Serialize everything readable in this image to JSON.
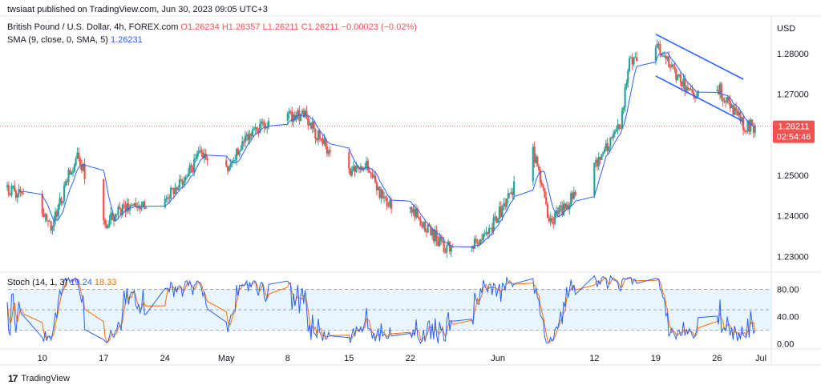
{
  "published": "twsiaat published on TradingView.com, Jun 30, 2023 09:05 UTC+3",
  "legend": {
    "symbol": "British Pound / U.S. Dollar, 4h, FOREX.com",
    "o_label": "O",
    "o": "1.26234",
    "h_label": "H",
    "h": "1.26357",
    "l_label": "L",
    "l": "1.26211",
    "c_label": "C",
    "c": "1.26211",
    "change": "−0.00023 (−0.02%)",
    "sma_label": "SMA (9, close, 0, SMA, 5)",
    "sma_value": "1.26231",
    "stoch_label": "Stoch (14, 1, 3)",
    "stoch_k": "19.24",
    "stoch_d": "18.33"
  },
  "currency": "USD",
  "price_tag": {
    "price": "1.26211",
    "countdown": "02:54:46"
  },
  "footer": {
    "brand": "TradingView",
    "mark": "17"
  },
  "colors": {
    "up": "#26a69a",
    "down": "#ef5350",
    "sma": "#2962ff",
    "stoch_k": "#2962ff",
    "stoch_d": "#ff6d00",
    "band_fill": "#e3f2fd",
    "channel": "#2962ff"
  },
  "chart_data": {
    "type": "candlestick",
    "timeframe": "4h",
    "price_axis": {
      "ylim": [
        1.2265,
        1.2893
      ],
      "ticks": [
        "1.23000",
        "1.24000",
        "1.25000",
        "1.26000",
        "1.27000",
        "1.28000"
      ],
      "tick_values": [
        1.23,
        1.24,
        1.25,
        1.26,
        1.27,
        1.28
      ]
    },
    "time_axis": {
      "labels": [
        "10",
        "17",
        "24",
        "May",
        "8",
        "15",
        "22",
        "Jun",
        "12",
        "19",
        "26",
        "Jul"
      ],
      "dates": [
        "2023-04-10",
        "2023-04-17",
        "2023-04-24",
        "2023-05-01",
        "2023-05-08",
        "2023-05-15",
        "2023-05-22",
        "2023-06-01",
        "2023-06-12",
        "2023-06-19",
        "2023-06-26",
        "2023-07-01"
      ]
    },
    "close_path": {
      "dates": [
        "2023-04-06",
        "2023-04-10",
        "2023-04-11",
        "2023-04-13",
        "2023-04-14",
        "2023-04-17",
        "2023-04-18",
        "2023-04-21",
        "2023-04-24",
        "2023-04-26",
        "2023-04-28",
        "2023-05-01",
        "2023-05-03",
        "2023-05-05",
        "2023-05-08",
        "2023-05-10",
        "2023-05-11",
        "2023-05-15",
        "2023-05-17",
        "2023-05-19",
        "2023-05-22",
        "2023-05-24",
        "2023-05-26",
        "2023-05-30",
        "2023-06-01",
        "2023-06-05",
        "2023-06-07",
        "2023-06-09",
        "2023-06-12",
        "2023-06-15",
        "2023-06-16",
        "2023-06-19",
        "2023-06-21",
        "2023-06-23",
        "2023-06-26",
        "2023-06-28",
        "2023-06-29",
        "2023-06-30"
      ],
      "values": [
        1.247,
        1.242,
        1.236,
        1.25,
        1.255,
        1.238,
        1.24,
        1.243,
        1.245,
        1.248,
        1.255,
        1.252,
        1.258,
        1.262,
        1.264,
        1.2655,
        1.261,
        1.25,
        1.252,
        1.244,
        1.242,
        1.237,
        1.232,
        1.233,
        1.24,
        1.256,
        1.238,
        1.243,
        1.252,
        1.263,
        1.278,
        1.283,
        1.276,
        1.27,
        1.272,
        1.266,
        1.2625,
        1.2621
      ]
    },
    "sma": {
      "period": 9,
      "last": 1.26231
    },
    "channel": {
      "upper": {
        "from": [
          "2023-06-19",
          1.2848
        ],
        "to": [
          "2023-06-29",
          1.2737
        ]
      },
      "lower": {
        "from": [
          "2023-06-19",
          1.2745
        ],
        "to": [
          "2023-06-29",
          1.2633
        ]
      }
    },
    "last_price": 1.26211,
    "stochastic": {
      "params": "14, 1, 3",
      "ylim": [
        -4,
        103
      ],
      "ticks": [
        "0.00",
        "40.00",
        "80.00"
      ],
      "tick_values": [
        0,
        40,
        80
      ],
      "band": [
        20,
        80
      ],
      "mid": 50,
      "k_last": 19.24,
      "d_last": 18.33
    }
  }
}
